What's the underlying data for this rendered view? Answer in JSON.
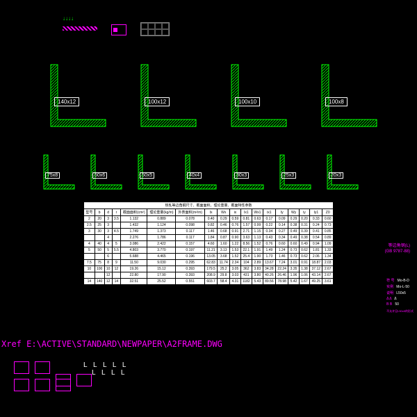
{
  "profiles_large": [
    {
      "label": "140x12"
    },
    {
      "label": "100x12"
    },
    {
      "label": "100x10"
    },
    {
      "label": "100x8"
    }
  ],
  "profiles_small": [
    {
      "label": "75x8"
    },
    {
      "label": "50x6"
    },
    {
      "label": "50x5"
    },
    {
      "label": "40x4"
    },
    {
      "label": "30x3"
    },
    {
      "label": "25x3"
    },
    {
      "label": "20x3"
    }
  ],
  "table": {
    "title": "热轧等边角钢尺寸、截面面积、理论重量、截面特性参数",
    "header_group1": "尺寸(mm)",
    "header_group2": "参 考 数 值",
    "cols": [
      "型号",
      "b",
      "d",
      "r",
      "截面面积(cm²)",
      "理论重量(kg/m)",
      "外表面积(m²/m)",
      "Ix",
      "Wx",
      "ix",
      "Ix1",
      "Wx1",
      "ix1",
      "Iy",
      "Wy",
      "iy",
      "Iy1",
      "Z0"
    ],
    "rows": [
      [
        "2",
        "20",
        "3",
        "3.5",
        "1.132",
        "0.889",
        "0.078",
        "0.40",
        "0.29",
        "0.59",
        "0.81",
        "0.63",
        "0.17",
        "0.09",
        "0.29",
        "0.20",
        "0.33",
        "0.60"
      ],
      [
        "2.5",
        "25",
        "3",
        "",
        "1.432",
        "1.124",
        "0.098",
        "0.82",
        "0.46",
        "0.76",
        "1.57",
        "0.99",
        "0.22",
        "0.14",
        "0.38",
        "0.31",
        "0.24",
        "0.73"
      ],
      [
        "3",
        "30",
        "3",
        "4.5",
        "1.749",
        "1.373",
        "0.117",
        "1.46",
        "0.68",
        "0.91",
        "2.71",
        "1.15",
        "0.34",
        "0.27",
        "0.49",
        "0.39",
        "0.41",
        "0.85"
      ],
      [
        "",
        "",
        "4",
        "",
        "2.276",
        "1.786",
        "0.117",
        "1.84",
        "0.87",
        "0.90",
        "3.63",
        "1.13",
        "0.43",
        "0.34",
        "0.49",
        "0.38",
        "0.54",
        "0.89"
      ],
      [
        "4",
        "40",
        "4",
        "5",
        "3.086",
        "2.422",
        "0.157",
        "4.60",
        "1.60",
        "1.22",
        "8.56",
        "1.52",
        "0.76",
        "0.60",
        "0.60",
        "0.49",
        "0.94",
        "1.09"
      ],
      [
        "5",
        "50",
        "5",
        "5.5",
        "4.803",
        "3.770",
        "0.197",
        "11.21",
        "3.13",
        "1.53",
        "22.1",
        "1.91",
        "1.49",
        "1.24",
        "0.73",
        "0.62",
        "1.81",
        "1.33"
      ],
      [
        "",
        "",
        "6",
        "",
        "5.688",
        "4.465",
        "0.196",
        "13.05",
        "3.68",
        "1.52",
        "25.4",
        "1.90",
        "1.73",
        "1.46",
        "0.73",
        "0.62",
        "2.06",
        "1.34"
      ],
      [
        "7.5",
        "75",
        "8",
        "9",
        "11.50",
        "9.030",
        "0.295",
        "62.83",
        "11.74",
        "2.34",
        "104",
        "2.89",
        "13.67",
        "7.24",
        "3.01",
        "0.91",
        "18.87",
        "2.03"
      ],
      [
        "10",
        "100",
        "10",
        "12",
        "19.26",
        "15.12",
        "0.393",
        "179.5",
        "25.2",
        "3.05",
        "362",
        "3.83",
        "34.28",
        "22.24",
        "3.35",
        "1.38",
        "37.12",
        "2.67"
      ],
      [
        "",
        "",
        "12",
        "",
        "22.80",
        "17.90",
        "0.393",
        "208.9",
        "29.8",
        "3.03",
        "431",
        "3.80",
        "40.26",
        "26.46",
        "1.96",
        "1.06",
        "43.14",
        "2.67"
      ],
      [
        "14",
        "140",
        "12",
        "14",
        "32.51",
        "25.52",
        "0.551",
        "603.7",
        "58.4",
        "4.31",
        "1182",
        "5.43",
        "89.56",
        "78.98",
        "5.42",
        "1.67",
        "49.25",
        "3.61"
      ]
    ]
  },
  "xref": "Xref  E:\\ACTIVE\\STANDARD\\NEWPAPER\\A2FRAME.DWG",
  "right_title_1": "等边角钢(L)",
  "right_title_2": "(GB 9787-88)",
  "right_labels": [
    "符 号",
    "Mo-B-D",
    "实例",
    "Mo-L-50",
    "说明",
    "L50x5",
    "Δ Δ",
    "Δ",
    "B B",
    "50"
  ],
  "right_note": "不允许见L50x5的形式",
  "l_marks_1": "L L L L L",
  "l_marks_2": "L L L L",
  "colors": {
    "bg": "#000000",
    "green": "#00ff00",
    "magenta": "#ff00ff",
    "white": "#ffffff"
  }
}
